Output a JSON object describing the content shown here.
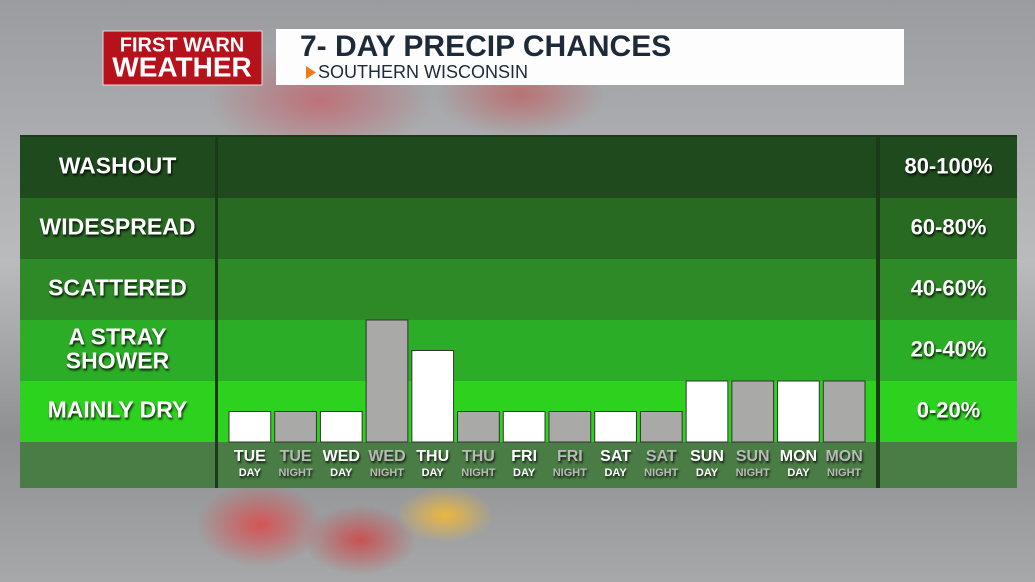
{
  "header": {
    "logo_top": "FIRST WARN",
    "logo_bottom": "WEATHER",
    "title": "7- DAY PRECIP CHANCES",
    "subtitle": "SOUTHERN WISCONSIN"
  },
  "chart_data": {
    "type": "bar",
    "categories": [
      "TUE",
      "TUE",
      "WED",
      "WED",
      "THU",
      "THU",
      "FRI",
      "FRI",
      "SAT",
      "SAT",
      "SUN",
      "SUN",
      "MON",
      "MON"
    ],
    "category_sublabels": [
      "DAY",
      "NIGHT",
      "DAY",
      "NIGHT",
      "DAY",
      "NIGHT",
      "DAY",
      "NIGHT",
      "DAY",
      "NIGHT",
      "DAY",
      "NIGHT",
      "DAY",
      "NIGHT"
    ],
    "values": [
      10,
      10,
      10,
      40,
      30,
      10,
      10,
      10,
      10,
      10,
      20,
      20,
      20,
      20
    ],
    "colors": [
      "#ffffff",
      "#a9aaa7",
      "#ffffff",
      "#a9aaa7",
      "#ffffff",
      "#a9aaa7",
      "#ffffff",
      "#a9aaa7",
      "#ffffff",
      "#a9aaa7",
      "#ffffff",
      "#a9aaa7",
      "#ffffff",
      "#a9aaa7"
    ],
    "ylim": [
      0,
      100
    ],
    "bands": [
      {
        "name": "WASHOUT",
        "label": "80-100%",
        "from": 80,
        "to": 100,
        "color": "#1f4a1d"
      },
      {
        "name": "WIDESPREAD",
        "label": "60-80%",
        "from": 60,
        "to": 80,
        "color": "#286a22"
      },
      {
        "name": "SCATTERED",
        "label": "40-60%",
        "from": 40,
        "to": 60,
        "color": "#2d8a26"
      },
      {
        "name": "A STRAY SHOWER",
        "label": "20-40%",
        "from": 20,
        "to": 40,
        "color": "#2cad27"
      },
      {
        "name": "MAINLY DRY",
        "label": "0-20%",
        "from": 0,
        "to": 20,
        "color": "#2dd21e"
      }
    ]
  }
}
